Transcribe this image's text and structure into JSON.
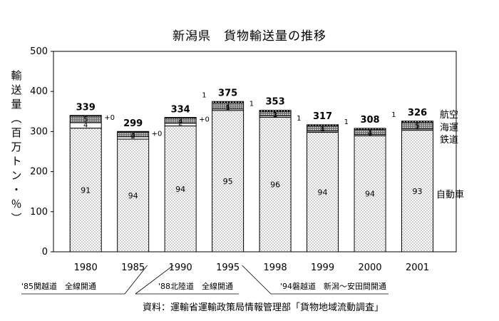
{
  "chart_data": {
    "type": "bar",
    "stacked": true,
    "title": "新潟県　貨物輸送量の推移",
    "ylabel": "輸送量（百万トン・％）",
    "ylim": [
      0,
      500
    ],
    "yticks": [
      0,
      100,
      200,
      300,
      400,
      500
    ],
    "categories": [
      "1980",
      "1985",
      "1990",
      "1995",
      "1998",
      "1999",
      "2000",
      "2001"
    ],
    "totals": [
      339,
      299,
      334,
      375,
      353,
      317,
      308,
      326
    ],
    "series": [
      {
        "name": "自動車",
        "values": [
          91,
          94,
          94,
          95,
          96,
          94,
          94,
          93
        ]
      },
      {
        "name": "鉄道",
        "values": [
          4,
          2,
          2,
          1,
          1,
          1,
          1,
          1
        ]
      },
      {
        "name": "海運",
        "values": [
          5,
          4,
          4,
          4,
          3,
          4,
          4,
          5
        ]
      },
      {
        "name": "航空",
        "values": [
          "+0",
          "+0",
          "+0",
          "1",
          "1",
          "1",
          "1",
          "1"
        ]
      }
    ],
    "annotations": [
      "'85関越道　全線開通",
      "'88北陸道　全線開通",
      "'94磐越道　新潟～安田間開通"
    ],
    "source": "資料：運輸省運輸政策局情報管理部「貨物地域流動調査」"
  }
}
